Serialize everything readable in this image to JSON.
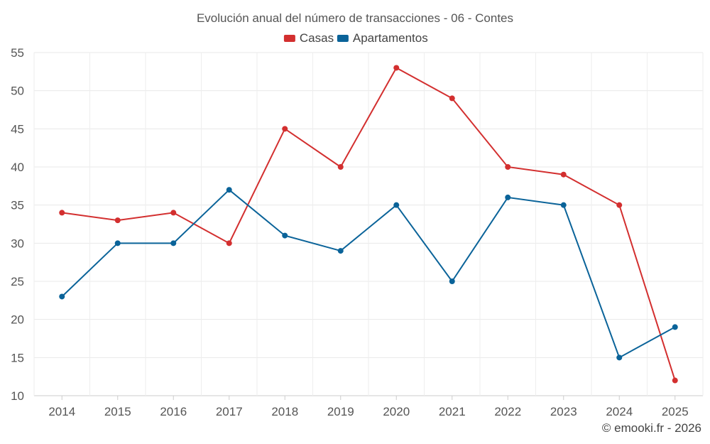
{
  "chart_data": {
    "type": "line",
    "title": "Evolución anual del número de transacciones - 06 - Contes",
    "categories": [
      "2014",
      "2015",
      "2016",
      "2017",
      "2018",
      "2019",
      "2020",
      "2021",
      "2022",
      "2023",
      "2024",
      "2025"
    ],
    "series": [
      {
        "name": "Casas",
        "color": "#d32f2f",
        "values": [
          34,
          33,
          34,
          30,
          45,
          40,
          53,
          49,
          40,
          39,
          35,
          12
        ]
      },
      {
        "name": "Apartamentos",
        "color": "#0a6399",
        "values": [
          23,
          30,
          30,
          37,
          31,
          29,
          35,
          25,
          36,
          35,
          15,
          19
        ]
      }
    ],
    "ylim": [
      10,
      55
    ],
    "yticks": [
      10,
      15,
      20,
      25,
      30,
      35,
      40,
      45,
      50,
      55
    ],
    "xlabel": "",
    "ylabel": "",
    "grid": true,
    "legend_position": "top-center"
  },
  "credit": "© emooki.fr - 2026"
}
